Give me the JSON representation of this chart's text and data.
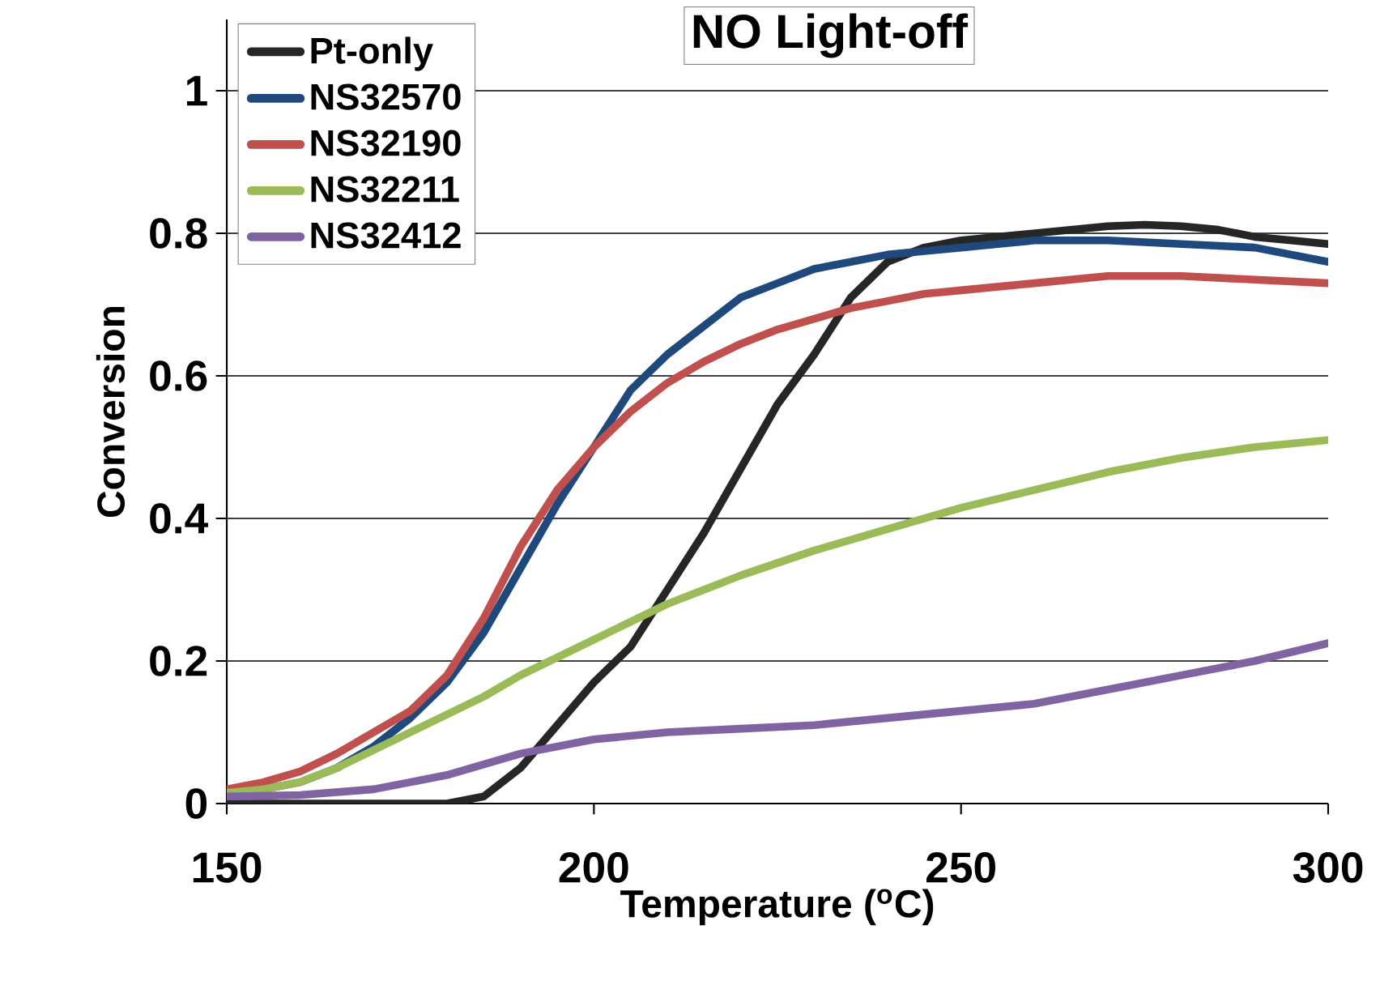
{
  "chart_data": {
    "type": "line",
    "title": "NO Light-off",
    "xlabel": "Temperature ($^{o}$C)",
    "ylabel": "Conversion",
    "xlim": [
      150,
      300
    ],
    "xticks": [
      150,
      200,
      250,
      300
    ],
    "ylim": [
      0,
      1.1
    ],
    "yticks": [
      0,
      0.2,
      0.4,
      0.6,
      0.8,
      1
    ],
    "grid": "y",
    "legend": "top left",
    "marker": "none",
    "line_style": "solid",
    "series": [
      {
        "name": "Pt-only",
        "color": "#262626",
        "x": [
          150,
          160,
          170,
          175,
          180,
          185,
          190,
          195,
          200,
          205,
          210,
          215,
          220,
          225,
          230,
          235,
          240,
          245,
          250,
          255,
          260,
          265,
          270,
          275,
          280,
          285,
          290,
          295,
          300
        ],
        "values": [
          0,
          0,
          0,
          0,
          0,
          0.01,
          0.05,
          0.11,
          0.17,
          0.22,
          0.3,
          0.38,
          0.47,
          0.56,
          0.63,
          0.71,
          0.76,
          0.78,
          0.79,
          0.795,
          0.8,
          0.805,
          0.81,
          0.812,
          0.81,
          0.805,
          0.795,
          0.79,
          0.785
        ]
      },
      {
        "name": "NS32570",
        "color": "#1f497d",
        "x": [
          150,
          155,
          160,
          165,
          170,
          175,
          180,
          185,
          190,
          195,
          200,
          205,
          210,
          215,
          220,
          225,
          230,
          235,
          240,
          245,
          250,
          255,
          260,
          270,
          280,
          290,
          300
        ],
        "values": [
          0.015,
          0.02,
          0.03,
          0.05,
          0.08,
          0.12,
          0.17,
          0.24,
          0.33,
          0.42,
          0.5,
          0.58,
          0.63,
          0.67,
          0.71,
          0.73,
          0.75,
          0.76,
          0.77,
          0.775,
          0.78,
          0.785,
          0.79,
          0.79,
          0.785,
          0.78,
          0.76
        ]
      },
      {
        "name": "NS32190",
        "color": "#c0504d",
        "x": [
          150,
          155,
          160,
          165,
          170,
          175,
          180,
          185,
          190,
          195,
          200,
          205,
          210,
          215,
          220,
          225,
          230,
          235,
          240,
          245,
          250,
          260,
          270,
          280,
          290,
          300
        ],
        "values": [
          0.02,
          0.03,
          0.045,
          0.07,
          0.1,
          0.13,
          0.18,
          0.26,
          0.36,
          0.44,
          0.5,
          0.55,
          0.59,
          0.62,
          0.645,
          0.665,
          0.68,
          0.695,
          0.705,
          0.715,
          0.72,
          0.73,
          0.74,
          0.74,
          0.735,
          0.73
        ]
      },
      {
        "name": "NS32211",
        "color": "#9bbb59",
        "x": [
          150,
          155,
          160,
          165,
          170,
          175,
          180,
          185,
          190,
          195,
          200,
          205,
          210,
          215,
          220,
          230,
          240,
          250,
          260,
          270,
          280,
          290,
          300
        ],
        "values": [
          0.015,
          0.02,
          0.03,
          0.05,
          0.075,
          0.1,
          0.125,
          0.15,
          0.18,
          0.205,
          0.23,
          0.255,
          0.28,
          0.3,
          0.32,
          0.355,
          0.385,
          0.415,
          0.44,
          0.465,
          0.485,
          0.5,
          0.51
        ]
      },
      {
        "name": "NS32412",
        "color": "#8064a2",
        "x": [
          150,
          160,
          170,
          175,
          180,
          185,
          190,
          195,
          200,
          210,
          220,
          230,
          240,
          250,
          260,
          270,
          280,
          290,
          300
        ],
        "values": [
          0.01,
          0.012,
          0.02,
          0.03,
          0.04,
          0.055,
          0.07,
          0.08,
          0.09,
          0.1,
          0.105,
          0.11,
          0.12,
          0.13,
          0.14,
          0.16,
          0.18,
          0.2,
          0.225
        ]
      }
    ]
  }
}
